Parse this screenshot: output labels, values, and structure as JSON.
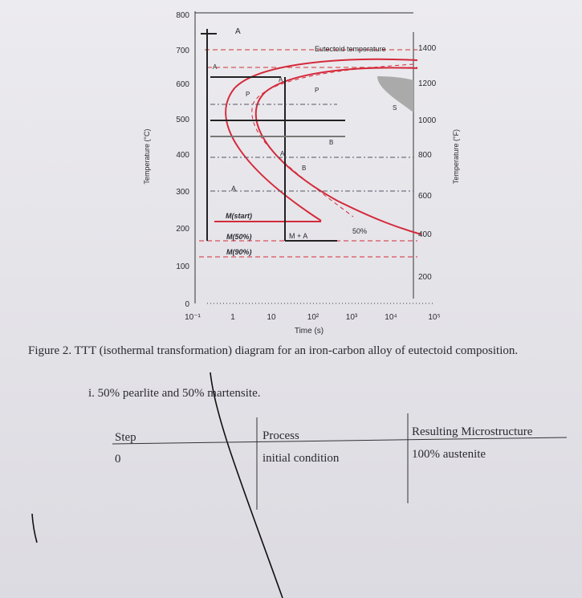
{
  "figure": {
    "y_axis_label": "Temperature (°C)",
    "y2_axis_label": "Temperature (°F)",
    "x_axis_label": "Time (s)",
    "y_ticks": [
      "800",
      "700",
      "600",
      "500",
      "400",
      "300",
      "200",
      "100",
      "0"
    ],
    "y2_ticks": [
      "1400",
      "1200",
      "1000",
      "800",
      "600",
      "400",
      "200"
    ],
    "x_ticks": [
      "10⁻¹",
      "1",
      "10",
      "10²",
      "10³",
      "10⁴",
      "10⁵"
    ],
    "annotations": [
      "A",
      "Eutectoid temperature",
      "A",
      "A",
      "P",
      "P",
      "S",
      "B",
      "A",
      "B",
      "A",
      "M(start)",
      "M(50%)",
      "M(90%)",
      "M + A",
      "50%"
    ]
  },
  "caption": "Figure 2. TTT (isothermal transformation) diagram for an iron-carbon alloy of eutectoid composition.",
  "question": "i.  50% pearlite and 50% martensite.",
  "table": {
    "headers": [
      "Step",
      "Process",
      "Resulting Microstructure"
    ],
    "rows": [
      [
        "0",
        "initial condition",
        "100% austenite"
      ]
    ]
  }
}
